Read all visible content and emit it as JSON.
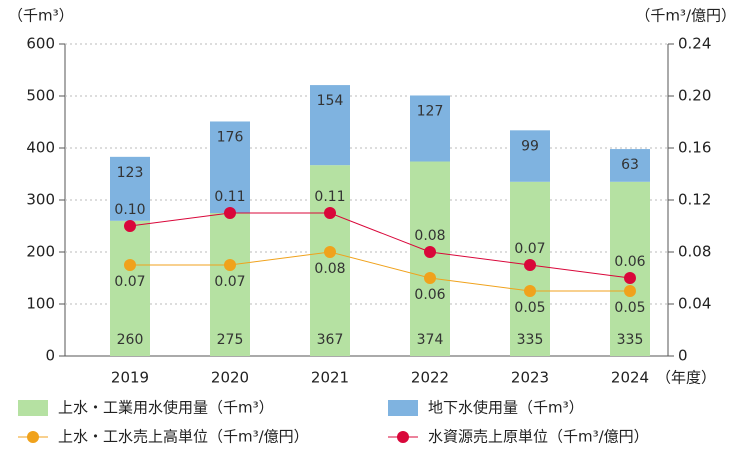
{
  "chart_data": {
    "type": "bar",
    "y_label": "（千m³）",
    "y2_label": "（千m³/億円）",
    "x_label": "（年度）",
    "categories": [
      "2019",
      "2020",
      "2021",
      "2022",
      "2023",
      "2024"
    ],
    "ylim": [
      0,
      600
    ],
    "yticks": [
      0,
      100,
      200,
      300,
      400,
      500,
      600
    ],
    "y2lim": [
      0,
      0.24
    ],
    "y2ticks": [
      0,
      0.04,
      0.08,
      0.12,
      0.16,
      {
        "value": 0.2,
        "label": "0.20"
      },
      0.24
    ],
    "grid": true,
    "series": [
      {
        "name": "上水・工業用水使用量（千m³）",
        "type": "bar",
        "color": "#b5e1a2",
        "values": [
          260,
          275,
          367,
          374,
          335,
          335
        ]
      },
      {
        "name": "地下水使用量（千m³）",
        "type": "bar",
        "color": "#7fb3e0",
        "values": [
          123,
          176,
          154,
          127,
          99,
          63
        ]
      },
      {
        "name": "上水・工水売上高単位（千m³/億円）",
        "type": "line",
        "axis": "y2",
        "color": "#f0a21c",
        "values": [
          0.07,
          0.07,
          0.08,
          0.06,
          0.05,
          0.05
        ],
        "value_labels": [
          "0.07",
          "0.07",
          "0.08",
          "0.06",
          "0.05",
          "0.05"
        ]
      },
      {
        "name": "水資源売上原単位（千m³/億円）",
        "type": "line",
        "axis": "y2",
        "color": "#d9073a",
        "values": [
          0.1,
          0.11,
          0.11,
          0.08,
          0.07,
          0.06
        ],
        "value_labels": [
          "0.10",
          "0.11",
          "0.11",
          "0.08",
          "0.07",
          "0.06"
        ]
      }
    ]
  }
}
